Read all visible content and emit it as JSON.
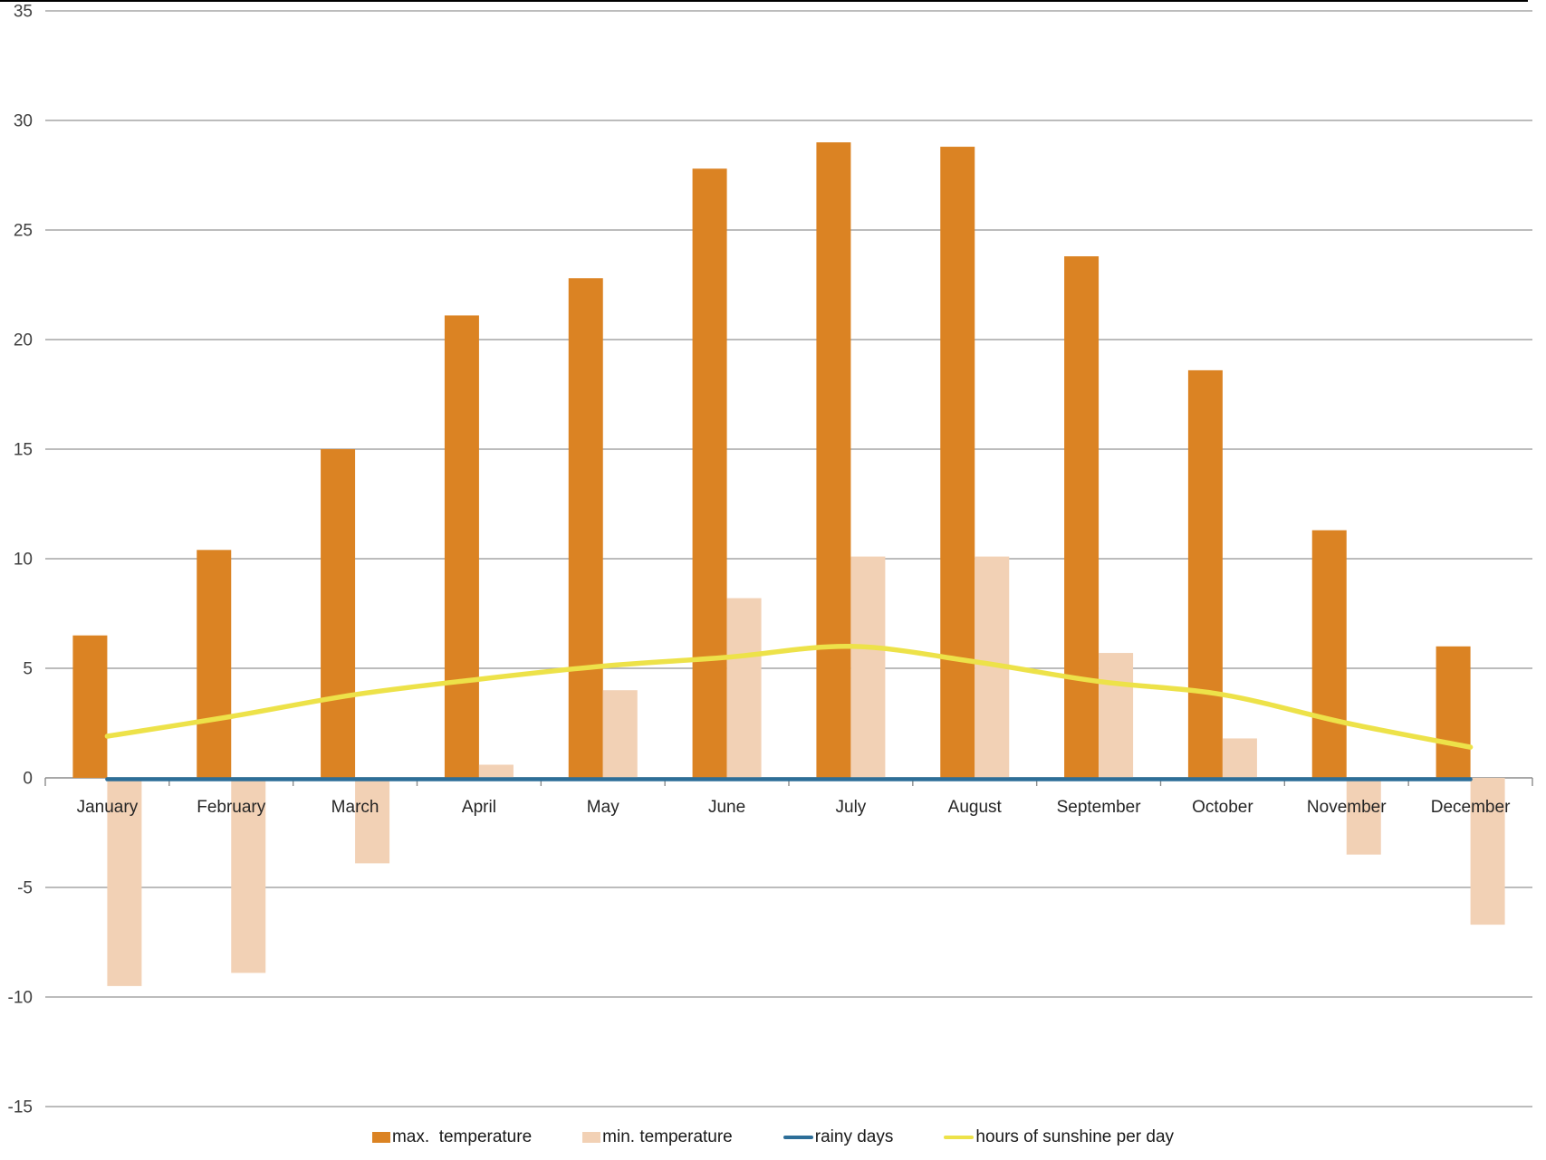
{
  "page": {
    "background": "#FFFFFF",
    "top_border_color": "#000000"
  },
  "chart_data": {
    "type": "bar",
    "subtype": "combo-bar-line",
    "title": "",
    "xlabel": "",
    "ylabel": "",
    "categories": [
      "January",
      "February",
      "March",
      "April",
      "May",
      "June",
      "July",
      "August",
      "September",
      "October",
      "November",
      "December"
    ],
    "series": [
      {
        "key": "max-temperature",
        "name": "max.  temperature",
        "type": "bar",
        "color": "#DB8323",
        "values": [
          6.5,
          10.4,
          15.0,
          21.1,
          22.8,
          27.8,
          29.0,
          28.8,
          23.8,
          18.6,
          11.3,
          6.0
        ]
      },
      {
        "key": "min-temperature",
        "name": "min. temperature",
        "type": "bar",
        "color": "#F2D1B5",
        "values": [
          -9.5,
          -8.9,
          -3.9,
          0.6,
          4.0,
          8.2,
          10.1,
          10.1,
          5.7,
          1.8,
          -3.5,
          -6.7
        ]
      },
      {
        "key": "rainy-days",
        "name": "rainy days",
        "type": "line",
        "color": "#2D6E98",
        "smooth": false,
        "values": [
          0,
          0,
          0,
          0,
          0,
          0,
          0,
          0,
          0,
          0,
          0,
          0
        ]
      },
      {
        "key": "sunshine",
        "name": "hours of sunshine per day",
        "type": "line",
        "color": "#EDE249",
        "smooth": true,
        "values": [
          1.9,
          2.8,
          3.8,
          4.5,
          5.1,
          5.5,
          6.0,
          5.3,
          4.4,
          3.8,
          2.5,
          1.4
        ]
      }
    ],
    "y_axis": {
      "min": -15,
      "max": 35,
      "step": 5,
      "tick_labels": [
        "35",
        "30",
        "25",
        "20",
        "15",
        "10",
        "5",
        "0",
        "-5",
        "-10",
        "-15"
      ],
      "gridline_color": "#A6A6A6",
      "axis_color": "#8C8C8C",
      "label_color": "#404040",
      "grid": true
    },
    "x_axis": {
      "label_color": "#262626"
    },
    "legend": {
      "position": "bottom",
      "text_color": "#1A1A1A"
    }
  }
}
